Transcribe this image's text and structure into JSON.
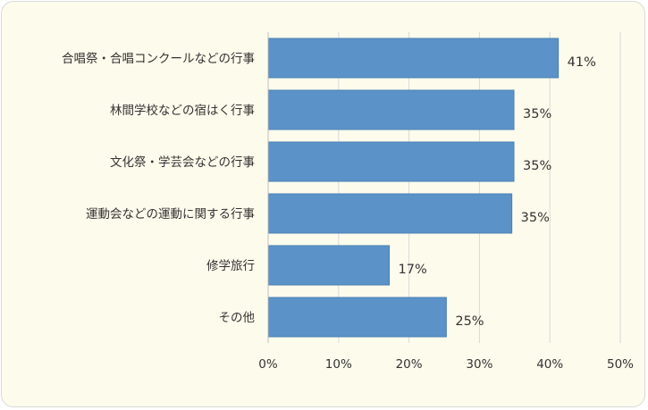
{
  "chart_data": {
    "type": "bar",
    "orientation": "horizontal",
    "categories": [
      "合唱祭・合唱コンクールなどの行事",
      "林間学校などの宿はく行事",
      "文化祭・学芸会などの行事",
      "運動会などの運動に関する行事",
      "修学旅行",
      "その他"
    ],
    "values": [
      41.2,
      34.9,
      34.9,
      34.6,
      17.2,
      25.3
    ],
    "data_labels": [
      "41%",
      "35%",
      "35%",
      "35%",
      "17%",
      "25%"
    ],
    "x_ticks": [
      "0%",
      "10%",
      "20%",
      "30%",
      "40%",
      "50%"
    ],
    "xlim": [
      0,
      50
    ],
    "grid": true,
    "legend": "none",
    "bar_color": "#5b93c8",
    "bar_border_color": "#4a80b6",
    "grid_color": "#d9d9d9",
    "background_color": "#fdfbec"
  }
}
